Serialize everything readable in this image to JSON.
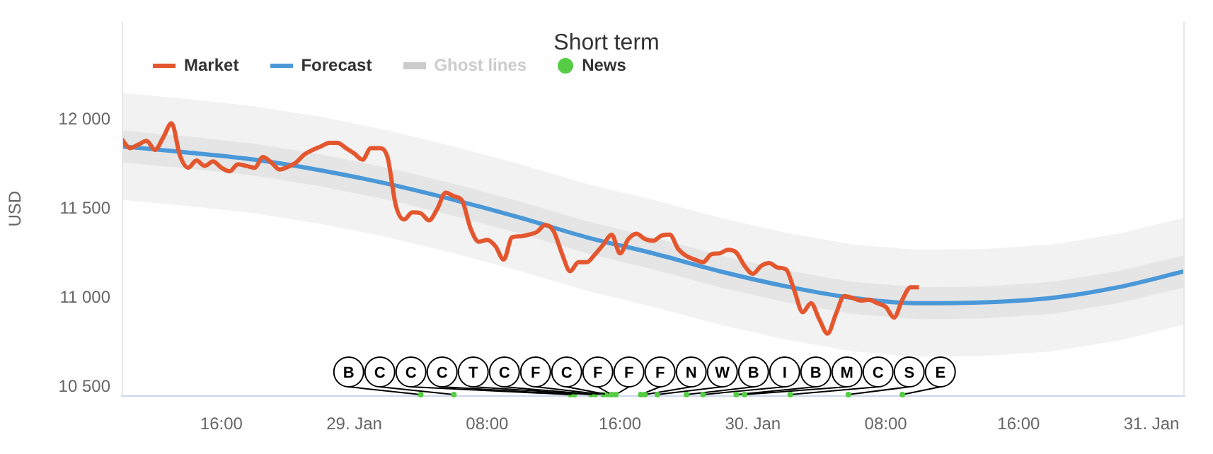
{
  "chart_data": {
    "type": "line",
    "title": "Short term",
    "ylabel": "USD",
    "legend": "top left",
    "grid": false,
    "marker": "none",
    "xlim": [
      "--01-28T10:00",
      "--01-31T02:00"
    ],
    "xticks": [
      {
        "value": "--01-28T16:00",
        "label": "16:00"
      },
      {
        "value": "--01-29T00:00",
        "label": "29. Jan"
      },
      {
        "value": "--01-29T08:00",
        "label": "08:00"
      },
      {
        "value": "--01-29T16:00",
        "label": "16:00"
      },
      {
        "value": "--01-30T00:00",
        "label": "30. Jan"
      },
      {
        "value": "--01-30T08:00",
        "label": "08:00"
      },
      {
        "value": "--01-30T16:00",
        "label": "16:00"
      },
      {
        "value": "--01-31T00:00",
        "label": "31. Jan"
      }
    ],
    "ylim": [
      10450,
      12550
    ],
    "yticks": [
      {
        "value": 10500,
        "label": "10 500"
      },
      {
        "value": 11000,
        "label": "11 000"
      },
      {
        "value": 11500,
        "label": "11 500"
      },
      {
        "value": 12000,
        "label": "12 000"
      }
    ],
    "series": [
      {
        "name": "Market",
        "color": "#e4572e",
        "x": [
          "--01-28T10:00",
          "--01-28T10:30",
          "--01-28T11:00",
          "--01-28T11:30",
          "--01-28T12:00",
          "--01-28T12:30",
          "--01-28T13:00",
          "--01-28T13:30",
          "--01-28T14:00",
          "--01-28T14:30",
          "--01-28T15:00",
          "--01-28T15:30",
          "--01-28T16:00",
          "--01-28T16:30",
          "--01-28T17:00",
          "--01-28T17:30",
          "--01-28T18:00",
          "--01-28T18:30",
          "--01-28T19:00",
          "--01-28T19:30",
          "--01-28T20:00",
          "--01-28T20:30",
          "--01-28T21:00",
          "--01-28T21:30",
          "--01-28T22:00",
          "--01-28T22:30",
          "--01-28T23:00",
          "--01-28T23:30",
          "--01-29T00:00",
          "--01-29T00:30",
          "--01-29T01:00",
          "--01-29T01:30",
          "--01-29T02:00",
          "--01-29T02:30",
          "--01-29T03:00",
          "--01-29T03:30",
          "--01-29T04:00",
          "--01-29T04:30",
          "--01-29T05:00",
          "--01-29T05:30",
          "--01-29T06:00",
          "--01-29T06:30",
          "--01-29T07:00",
          "--01-29T07:30",
          "--01-29T08:00",
          "--01-29T08:30",
          "--01-29T09:00",
          "--01-29T09:30",
          "--01-29T10:00",
          "--01-29T10:30",
          "--01-29T11:00",
          "--01-29T11:30",
          "--01-29T12:00",
          "--01-29T12:30",
          "--01-29T13:00",
          "--01-29T13:30",
          "--01-29T14:00",
          "--01-29T14:30",
          "--01-29T15:00",
          "--01-29T15:30",
          "--01-29T16:00",
          "--01-29T16:30",
          "--01-29T17:00",
          "--01-29T17:30",
          "--01-29T18:00",
          "--01-29T18:30",
          "--01-29T19:00",
          "--01-29T19:30",
          "--01-29T20:00",
          "--01-29T20:30",
          "--01-29T21:00",
          "--01-29T21:30",
          "--01-29T22:00",
          "--01-29T22:30",
          "--01-29T23:00",
          "--01-29T23:30",
          "--01-30T00:00",
          "--01-30T00:30",
          "--01-30T01:00",
          "--01-30T01:30",
          "--01-30T02:00",
          "--01-30T02:30",
          "--01-30T03:00",
          "--01-30T03:30",
          "--01-30T04:00",
          "--01-30T04:30",
          "--01-30T05:00",
          "--01-30T05:30",
          "--01-30T06:00",
          "--01-30T06:30",
          "--01-30T07:00",
          "--01-30T07:30",
          "--01-30T08:00",
          "--01-30T08:30",
          "--01-30T09:00",
          "--01-30T09:30",
          "--01-30T10:00"
        ],
        "values": [
          11890,
          11840,
          11860,
          11880,
          11830,
          11900,
          11980,
          11800,
          11730,
          11770,
          11740,
          11765,
          11730,
          11710,
          11750,
          11740,
          11730,
          11790,
          11760,
          11720,
          11735,
          11760,
          11805,
          11830,
          11850,
          11870,
          11870,
          11840,
          11810,
          11775,
          11840,
          11840,
          11790,
          11520,
          11440,
          11480,
          11475,
          11435,
          11500,
          11590,
          11570,
          11545,
          11390,
          11315,
          11325,
          11290,
          11215,
          11340,
          11345,
          11355,
          11370,
          11410,
          11375,
          11250,
          11150,
          11200,
          11200,
          11245,
          11300,
          11355,
          11250,
          11330,
          11360,
          11330,
          11320,
          11350,
          11355,
          11275,
          11235,
          11215,
          11200,
          11245,
          11250,
          11270,
          11255,
          11180,
          11135,
          11180,
          11195,
          11170,
          11160,
          11040,
          10920,
          10970,
          10880,
          10800,
          10910,
          11010,
          11000,
          10985,
          10990,
          10970,
          10950,
          10890,
          10990,
          11060,
          11060
        ]
      },
      {
        "name": "Forecast",
        "color": "#4a98d8",
        "x": [
          "--01-28T10:00",
          "--01-28T14:00",
          "--01-28T18:00",
          "--01-28T22:00",
          "--01-29T02:00",
          "--01-29T06:00",
          "--01-29T10:00",
          "--01-29T14:00",
          "--01-29T18:00",
          "--01-29T22:00",
          "--01-30T02:00",
          "--01-30T06:00",
          "--01-30T10:00",
          "--01-30T14:00",
          "--01-30T18:00",
          "--01-30T22:00",
          "--01-31T02:00"
        ],
        "values": [
          11850,
          11815,
          11775,
          11715,
          11640,
          11550,
          11450,
          11340,
          11250,
          11150,
          11065,
          11000,
          10970,
          10975,
          11000,
          11060,
          11150
        ],
        "lower": [
          11760,
          11725,
          11685,
          11625,
          11550,
          11460,
          11360,
          11250,
          11160,
          11060,
          10975,
          10910,
          10880,
          10885,
          10910,
          10970,
          11060
        ],
        "upper": [
          11940,
          11905,
          11865,
          11805,
          11730,
          11640,
          11540,
          11430,
          11340,
          11240,
          11155,
          11090,
          11060,
          11065,
          11090,
          11150,
          11240
        ]
      },
      {
        "name": "Ghost lines",
        "color": "#cccccc",
        "x": [
          "--01-28T10:00",
          "--01-28T14:00",
          "--01-28T18:00",
          "--01-28T22:00",
          "--01-29T02:00",
          "--01-29T06:00",
          "--01-29T10:00",
          "--01-29T14:00",
          "--01-29T18:00",
          "--01-29T22:00",
          "--01-30T02:00",
          "--01-30T06:00",
          "--01-30T10:00",
          "--01-30T14:00",
          "--01-30T18:00",
          "--01-30T22:00",
          "--01-31T02:00"
        ],
        "values": [
          null,
          null,
          null,
          null,
          null,
          null,
          null,
          null,
          null,
          null,
          null,
          null,
          null,
          null,
          null,
          null,
          null
        ],
        "lower": [
          11550,
          11515,
          11475,
          11415,
          11340,
          11250,
          11150,
          11040,
          10950,
          10850,
          10765,
          10700,
          10670,
          10675,
          10700,
          10760,
          10850
        ],
        "upper": [
          12150,
          12115,
          12075,
          12015,
          11940,
          11850,
          11750,
          11640,
          11550,
          11450,
          11365,
          11300,
          11270,
          11275,
          11300,
          11360,
          11450
        ]
      },
      {
        "name": "News",
        "type": "scatter",
        "marker": "circle",
        "color": "#55cc44",
        "x": [
          "--01-29T04:00",
          "--01-29T06:00",
          "--01-29T13:00",
          "--01-29T13:15",
          "--01-29T14:15",
          "--01-29T14:30",
          "--01-29T15:00",
          "--01-29T15:15",
          "--01-29T15:30",
          "--01-29T15:45",
          "--01-29T17:15",
          "--01-29T17:30",
          "--01-29T18:15",
          "--01-29T20:00",
          "--01-29T21:00",
          "--01-29T23:00",
          "--01-29T23:30",
          "--01-30T02:15",
          "--01-30T05:45",
          "--01-30T09:00"
        ],
        "values": [
          10450,
          10450,
          10450,
          10450,
          10450,
          10450,
          10450,
          10450,
          10450,
          10450,
          10450,
          10450,
          10450,
          10450,
          10450,
          10450,
          10450,
          10450,
          10450,
          10450
        ],
        "value_labels": [
          "B",
          "C",
          "C",
          "C",
          "T",
          "C",
          "F",
          "C",
          "F",
          "F",
          "F",
          "N",
          "W",
          "B",
          "I",
          "B",
          "M",
          "C",
          "S",
          "E"
        ]
      }
    ]
  }
}
